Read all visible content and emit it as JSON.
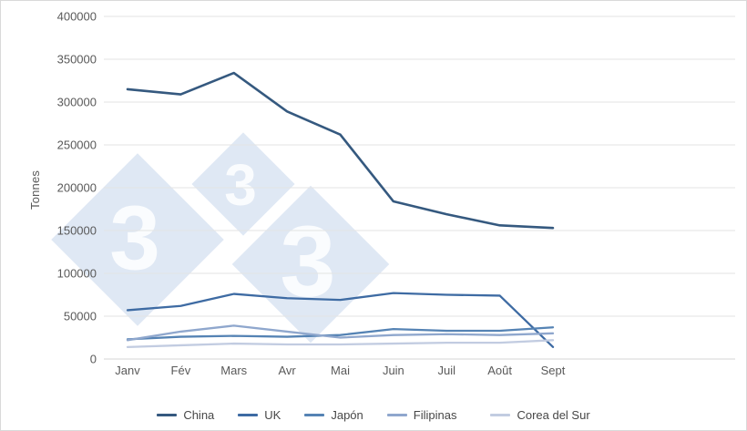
{
  "chart": {
    "title": "",
    "y_axis_title": "Tonnes",
    "watermark": {
      "digit": "3",
      "diamond_fill": "#b7cce6",
      "digit_color": "#ffffff"
    },
    "colors": {
      "gridline": "#e3e3e3",
      "axis_line": "#d6d6d6",
      "tick_text": "#595959",
      "legend_text": "#474747"
    }
  },
  "chart_data": {
    "type": "line",
    "categories": [
      "Janv",
      "Fév",
      "Mars",
      "Avr",
      "Mai",
      "Juin",
      "Juil",
      "Août",
      "Sept"
    ],
    "series": [
      {
        "name": "China",
        "color": "#35597f",
        "values": [
          315000,
          309000,
          334000,
          289000,
          262000,
          184000,
          169000,
          156000,
          153000
        ]
      },
      {
        "name": "UK",
        "color": "#3e6ba3",
        "values": [
          57000,
          62000,
          76000,
          71000,
          69000,
          77000,
          75000,
          74000,
          14000
        ]
      },
      {
        "name": "Japón",
        "color": "#5583b4",
        "values": [
          23000,
          26000,
          27000,
          26000,
          28000,
          35000,
          33000,
          33000,
          37000
        ]
      },
      {
        "name": "Filipinas",
        "color": "#8fa7cd",
        "values": [
          22000,
          32000,
          39000,
          32000,
          25000,
          28000,
          29000,
          28000,
          30000
        ]
      },
      {
        "name": "Corea del Sur",
        "color": "#c2cce1",
        "values": [
          14000,
          16000,
          18000,
          17000,
          17000,
          18000,
          19000,
          19000,
          22000
        ]
      }
    ],
    "xlabel": "",
    "ylabel": "Tonnes",
    "ylim": [
      0,
      400000
    ],
    "ytick_step": 50000,
    "ytick_labels": [
      "0",
      "50000",
      "100000",
      "150000",
      "200000",
      "250000",
      "300000",
      "350000",
      "400000"
    ],
    "grid": true,
    "legend_position": "bottom"
  }
}
